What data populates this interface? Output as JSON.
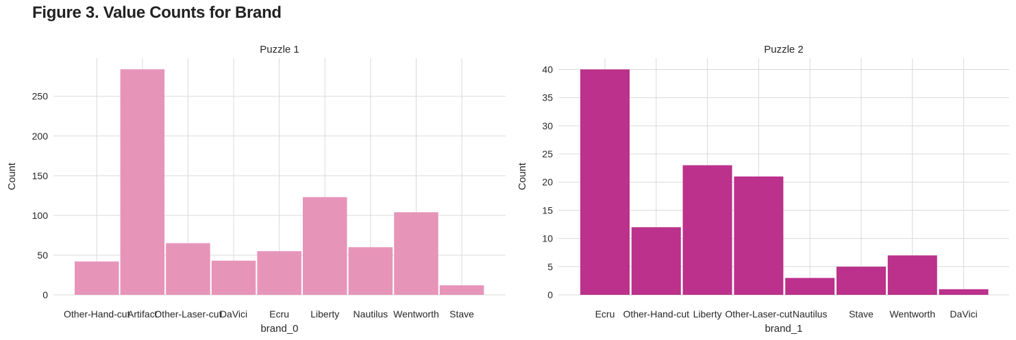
{
  "figure": {
    "title": "Figure 3. Value Counts for Brand"
  },
  "chart_data": [
    {
      "type": "bar",
      "title": "Puzzle 1",
      "xlabel": "brand_0",
      "ylabel": "Count",
      "categories": [
        "Other-Hand-cut",
        "Artifact",
        "Other-Laser-cut",
        "DaVici",
        "Ecru",
        "Liberty",
        "Nautilus",
        "Wentworth",
        "Stave"
      ],
      "values": [
        42,
        284,
        65,
        43,
        55,
        123,
        60,
        104,
        12
      ],
      "yticks": [
        0,
        50,
        100,
        150,
        200,
        250
      ],
      "ylim": [
        0,
        298
      ],
      "color": "#e794b9",
      "grid": true
    },
    {
      "type": "bar",
      "title": "Puzzle 2",
      "xlabel": "brand_1",
      "ylabel": "Count",
      "categories": [
        "Ecru",
        "Other-Hand-cut",
        "Liberty",
        "Other-Laser-cut",
        "Nautilus",
        "Stave",
        "Wentworth",
        "DaVici"
      ],
      "values": [
        40,
        12,
        23,
        21,
        3,
        5,
        7,
        1
      ],
      "yticks": [
        0,
        5,
        10,
        15,
        20,
        25,
        30,
        35,
        40
      ],
      "ylim": [
        0,
        42
      ],
      "color": "#bb318b",
      "grid": true
    }
  ]
}
